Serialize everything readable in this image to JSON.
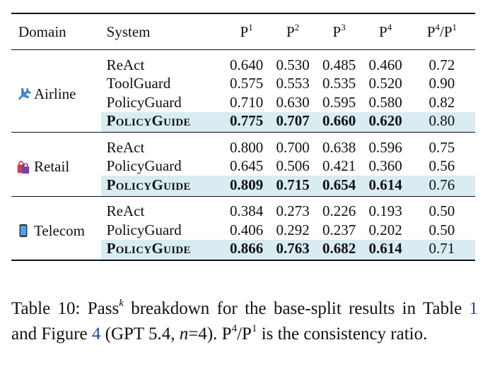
{
  "table": {
    "headers": {
      "domain": "Domain",
      "system": "System",
      "p1": "P",
      "p1_exp": "1",
      "p2": "P",
      "p2_exp": "2",
      "p3": "P",
      "p3_exp": "3",
      "p4": "P",
      "p4_exp": "4",
      "ratio_a": "P",
      "ratio_a_exp": "4",
      "ratio_slash": "/",
      "ratio_b": "P",
      "ratio_b_exp": "1"
    },
    "groups": [
      {
        "domain": "Airline",
        "icon": "airplane-icon",
        "rows": [
          {
            "system": "ReAct",
            "p1": "0.640",
            "p2": "0.530",
            "p3": "0.485",
            "p4": "0.460",
            "ratio": "0.72"
          },
          {
            "system": "ToolGuard",
            "p1": "0.575",
            "p2": "0.553",
            "p3": "0.535",
            "p4": "0.520",
            "ratio": "0.90"
          },
          {
            "system": "PolicyGuard",
            "p1": "0.710",
            "p2": "0.630",
            "p3": "0.595",
            "p4": "0.580",
            "ratio": "0.82"
          },
          {
            "system": "PolicyGuide",
            "p1": "0.775",
            "p2": "0.707",
            "p3": "0.660",
            "p4": "0.620",
            "ratio": "0.80"
          }
        ]
      },
      {
        "domain": "Retail",
        "icon": "shopping-bags-icon",
        "rows": [
          {
            "system": "ReAct",
            "p1": "0.800",
            "p2": "0.700",
            "p3": "0.638",
            "p4": "0.596",
            "ratio": "0.75"
          },
          {
            "system": "PolicyGuard",
            "p1": "0.645",
            "p2": "0.506",
            "p3": "0.421",
            "p4": "0.360",
            "ratio": "0.56"
          },
          {
            "system": "PolicyGuide",
            "p1": "0.809",
            "p2": "0.715",
            "p3": "0.654",
            "p4": "0.614",
            "ratio": "0.76"
          }
        ]
      },
      {
        "domain": "Telecom",
        "icon": "mobile-phone-icon",
        "rows": [
          {
            "system": "ReAct",
            "p1": "0.384",
            "p2": "0.273",
            "p3": "0.226",
            "p4": "0.193",
            "ratio": "0.50"
          },
          {
            "system": "PolicyGuard",
            "p1": "0.406",
            "p2": "0.292",
            "p3": "0.237",
            "p4": "0.202",
            "ratio": "0.50"
          },
          {
            "system": "PolicyGuide",
            "p1": "0.866",
            "p2": "0.763",
            "p3": "0.682",
            "p4": "0.614",
            "ratio": "0.71"
          }
        ]
      }
    ],
    "highlight_color": "#d9ecf2"
  },
  "caption": {
    "t1": "Table 10: Pass",
    "t1_exp": "k",
    "t2": " breakdown for the base-split results in Table ",
    "ref1": "1",
    "t3": " and Figure ",
    "ref2": "4",
    "t4": " (GPT 5.4, ",
    "n": "n",
    "t5": "=4).  ",
    "pa": "P",
    "pa_exp": "4",
    "slash": "/",
    "pb": "P",
    "pb_exp": "1",
    "t6": " is the consistency ratio.",
    "ref_color": "#1f3fbf"
  }
}
